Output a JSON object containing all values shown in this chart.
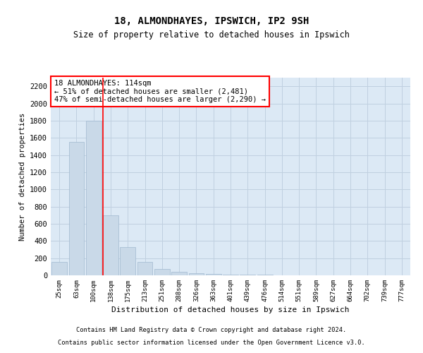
{
  "title1": "18, ALMONDHAYES, IPSWICH, IP2 9SH",
  "title2": "Size of property relative to detached houses in Ipswich",
  "xlabel": "Distribution of detached houses by size in Ipswich",
  "ylabel": "Number of detached properties",
  "categories": [
    "25sqm",
    "63sqm",
    "100sqm",
    "138sqm",
    "175sqm",
    "213sqm",
    "251sqm",
    "288sqm",
    "326sqm",
    "363sqm",
    "401sqm",
    "439sqm",
    "476sqm",
    "514sqm",
    "551sqm",
    "589sqm",
    "627sqm",
    "664sqm",
    "702sqm",
    "739sqm",
    "777sqm"
  ],
  "values": [
    160,
    1550,
    1800,
    700,
    325,
    160,
    75,
    45,
    25,
    18,
    12,
    8,
    5,
    0,
    0,
    0,
    0,
    0,
    0,
    0,
    0
  ],
  "bar_color": "#c9d9e8",
  "bar_edge_color": "#a0b8cf",
  "red_line_x": 2.55,
  "annotation_text": "18 ALMONDHAYES: 114sqm\n← 51% of detached houses are smaller (2,481)\n47% of semi-detached houses are larger (2,290) →",
  "annotation_box_color": "white",
  "annotation_edge_color": "red",
  "grid_color": "#c0d0e0",
  "background_color": "#dce9f5",
  "ylim": [
    0,
    2300
  ],
  "yticks": [
    0,
    200,
    400,
    600,
    800,
    1000,
    1200,
    1400,
    1600,
    1800,
    2000,
    2200
  ],
  "footer1": "Contains HM Land Registry data © Crown copyright and database right 2024.",
  "footer2": "Contains public sector information licensed under the Open Government Licence v3.0."
}
